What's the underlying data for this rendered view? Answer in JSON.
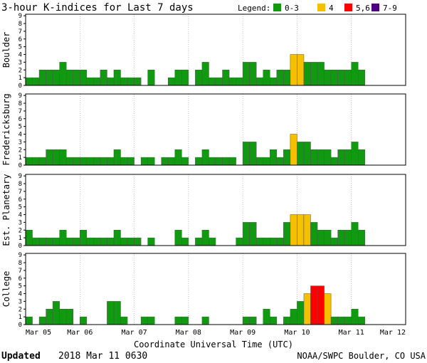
{
  "chart_data": {
    "type": "bar",
    "title": "3-hour K-indices for Last 7 days",
    "xlabel": "Coordinate Universal Time (UTC)",
    "ylim": [
      0,
      9
    ],
    "y_ticks": [
      "0",
      "1",
      "2",
      "3",
      "4",
      "5",
      "6",
      "7",
      "8",
      "9"
    ],
    "x_ticks": [
      "Mar 05",
      "Mar 06",
      "Mar 07",
      "Mar 08",
      "Mar 09",
      "Mar 10",
      "Mar 11",
      "Mar 12"
    ],
    "grid": true,
    "legend": {
      "label": "Legend:",
      "position": "top-right",
      "items": [
        {
          "label": "0-3",
          "color": "#119911"
        },
        {
          "label": "4",
          "color": "#f5c000"
        },
        {
          "label": "5,6",
          "color": "#ff0000"
        },
        {
          "label": "7-9",
          "color": "#4b0082"
        }
      ]
    },
    "panels": [
      {
        "name": "Boulder",
        "values": [
          1,
          1,
          2,
          2,
          2,
          3,
          2,
          2,
          2,
          1,
          1,
          2,
          1,
          2,
          1,
          1,
          1,
          0,
          2,
          0,
          0,
          1,
          2,
          2,
          0,
          2,
          3,
          1,
          1,
          2,
          1,
          1,
          3,
          3,
          1,
          2,
          1,
          2,
          2,
          4,
          4,
          3,
          3,
          3,
          2,
          2,
          2,
          2,
          3,
          2,
          0,
          0,
          0,
          0,
          0,
          0
        ]
      },
      {
        "name": "Fredericksburg",
        "values": [
          1,
          1,
          1,
          2,
          2,
          2,
          1,
          1,
          1,
          1,
          1,
          1,
          1,
          2,
          1,
          1,
          0,
          1,
          1,
          0,
          1,
          1,
          2,
          1,
          0,
          1,
          2,
          1,
          1,
          1,
          1,
          0,
          3,
          3,
          1,
          1,
          2,
          1,
          2,
          4,
          3,
          3,
          2,
          2,
          2,
          1,
          2,
          2,
          3,
          2,
          0,
          0,
          0,
          0,
          0,
          0
        ]
      },
      {
        "name": "Est. Planetary",
        "values": [
          2,
          1,
          1,
          1,
          1,
          2,
          1,
          1,
          2,
          1,
          1,
          1,
          1,
          2,
          1,
          1,
          1,
          0,
          1,
          0,
          0,
          0,
          2,
          1,
          0,
          1,
          2,
          1,
          0,
          0,
          0,
          1,
          3,
          3,
          1,
          1,
          1,
          1,
          3,
          4,
          4,
          4,
          3,
          2,
          2,
          1,
          2,
          2,
          3,
          2,
          0,
          0,
          0,
          0,
          0,
          0
        ]
      },
      {
        "name": "College",
        "values": [
          1,
          0,
          1,
          2,
          3,
          2,
          2,
          0,
          1,
          0,
          0,
          0,
          3,
          3,
          1,
          0,
          0,
          1,
          1,
          0,
          0,
          0,
          1,
          1,
          0,
          0,
          1,
          0,
          0,
          0,
          0,
          0,
          1,
          1,
          0,
          2,
          1,
          0,
          1,
          2,
          3,
          4,
          5,
          5,
          4,
          1,
          1,
          1,
          2,
          1,
          0,
          0,
          0,
          0,
          0,
          0
        ]
      }
    ]
  },
  "footer": {
    "updated_label": "Updated",
    "updated_value": "2018 Mar 11 0630",
    "source": "NOAA/SWPC Boulder, CO USA"
  }
}
